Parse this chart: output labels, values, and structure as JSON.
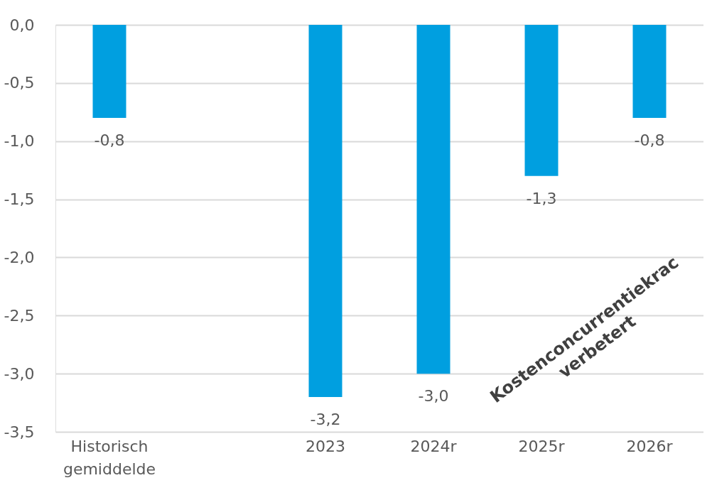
{
  "chart_data": {
    "type": "bar",
    "categories": [
      "Historisch\ngemiddelde",
      null,
      "2023",
      "2024r",
      "2025r",
      "2026r"
    ],
    "values": [
      -0.8,
      null,
      -3.2,
      -3.0,
      -1.3,
      -0.8
    ],
    "value_labels": [
      "-0,8",
      null,
      "-3,2",
      "-3,0",
      "-1,3",
      "-0,8"
    ],
    "color": "#009fe0",
    "ylim": [
      -3.5,
      0
    ],
    "yticks": [
      {
        "value": 0,
        "label": "0,0"
      },
      {
        "value": -0.5,
        "label": "-0,5"
      },
      {
        "value": -1,
        "label": "-1,0"
      },
      {
        "value": -1.5,
        "label": "-1,5"
      },
      {
        "value": -2,
        "label": "-2,0"
      },
      {
        "value": -2.5,
        "label": "-2,5"
      },
      {
        "value": -3,
        "label": "-3,0"
      },
      {
        "value": -3.5,
        "label": "-3,5"
      }
    ],
    "grid": "y",
    "annotations": [
      "Kostenconcurrentiekrac\nverbetert"
    ]
  }
}
